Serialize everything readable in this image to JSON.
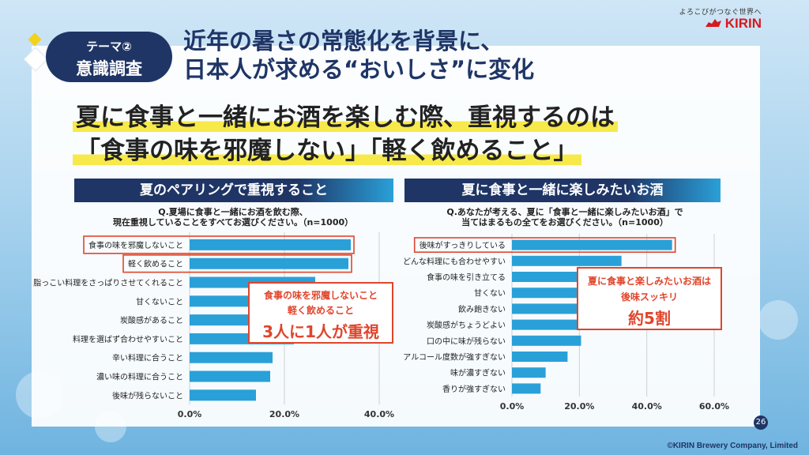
{
  "header": {
    "tagline": "よろこびがつなぐ世界へ",
    "logo_text": "KIRIN",
    "theme_label": "テーマ②",
    "theme_title": "意識調査",
    "headline_line1": "近年の暑さの常態化を背景に、",
    "headline_line2": "日本人が求める“おいしさ”に変化"
  },
  "subhead": {
    "line1": "夏に食事と一緒にお酒を楽しむ際、重視するのは",
    "line2": "「食事の味を邪魔しない」「軽く飲めること」"
  },
  "colors": {
    "navy": "#1f3566",
    "bar": "#2aa0d8",
    "highlight": "#e0452c",
    "marker": "#f7e94a"
  },
  "chart_data": [
    {
      "type": "bar",
      "orientation": "horizontal",
      "title": "夏のペアリングで重視すること",
      "question_line1": "Q.夏場に食事と一緒にお酒を飲む際、",
      "question_line2": "現在重視していることをすべてお選びください。（n=1000）",
      "categories": [
        "食事の味を邪魔しないこと",
        "軽く飲めること",
        "脂っこい料理をさっぱりさせてくれること",
        "甘くないこと",
        "炭酸感があること",
        "料理を選ばず合わせやすいこと",
        "辛い料理に合うこと",
        "濃い味の料理に合うこと",
        "後味が残らないこと"
      ],
      "values": [
        34.0,
        33.5,
        26.5,
        24.0,
        23.0,
        22.0,
        17.5,
        17.0,
        14.0
      ],
      "highlighted": [
        0,
        1
      ],
      "xlim": [
        0,
        40
      ],
      "x_ticks": [
        "0.0%",
        "20.0%",
        "40.0%"
      ],
      "callout": {
        "line1": "食事の味を邪魔しないこと",
        "line2": "軽く飲めること",
        "line3": "3人に1人が重視"
      }
    },
    {
      "type": "bar",
      "orientation": "horizontal",
      "title": "夏に食事と一緒に楽しみたいお酒",
      "question_line1": "Q.あなたが考える、夏に「食事と一緒に楽しみたいお酒」で",
      "question_line2": "当てはまるもの全てをお選びください。（n=1000）",
      "categories": [
        "後味がすっきりしている",
        "どんな料理にも合わせやすい",
        "食事の味を引き立てる",
        "甘くない",
        "飲み飽きない",
        "炭酸感がちょうどよい",
        "口の中に味が残らない",
        "アルコール度数が強すぎない",
        "味が濃すぎない",
        "香りが強すぎない"
      ],
      "values": [
        47.5,
        32.5,
        29.0,
        27.5,
        26.5,
        25.0,
        20.5,
        16.5,
        10.0,
        8.5
      ],
      "highlighted": [
        0
      ],
      "xlim": [
        0,
        60
      ],
      "x_ticks": [
        "0.0%",
        "20.0%",
        "40.0%",
        "60.0%"
      ],
      "callout": {
        "line1": "夏に食事と楽しみたいお酒は",
        "line2": "後味スッキリ",
        "line3": "約5割"
      }
    }
  ],
  "footer": {
    "page_number": "26",
    "copyright": "©KIRIN Brewery Company, Limited"
  }
}
